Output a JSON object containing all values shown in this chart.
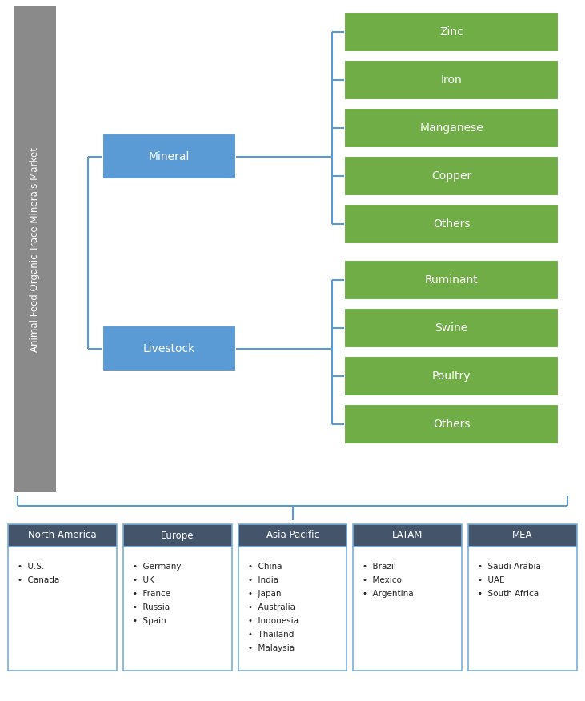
{
  "title_text": "Animal Feed Organic Trace Minerals Market",
  "title_box_color": "#8a8a8a",
  "title_text_color": "#ffffff",
  "blue_box_color": "#5b9bd5",
  "green_box_color": "#70ad47",
  "mineral_children": [
    "Zinc",
    "Iron",
    "Manganese",
    "Copper",
    "Others"
  ],
  "livestock_children": [
    "Ruminant",
    "Swine",
    "Poultry",
    "Others"
  ],
  "region_header_color": "#44546a",
  "region_header_text_color": "#ffffff",
  "region_border_color": "#7bafd4",
  "regions": [
    "North America",
    "Europe",
    "Asia Pacific",
    "LATAM",
    "MEA"
  ],
  "region_countries": {
    "North America": [
      "U.S.",
      "Canada"
    ],
    "Europe": [
      "Germany",
      "UK",
      "France",
      "Russia",
      "Spain"
    ],
    "Asia Pacific": [
      "China",
      "India",
      "Japan",
      "Australia",
      "Indonesia",
      "Thailand",
      "Malaysia"
    ],
    "LATAM": [
      "Brazil",
      "Mexico",
      "Argentina"
    ],
    "MEA": [
      "Saudi Arabia",
      "UAE",
      "South Africa"
    ]
  },
  "connector_color": "#5b9bd5",
  "background_color": "#ffffff",
  "fig_w": 7.31,
  "fig_h": 8.76,
  "dpi": 100
}
